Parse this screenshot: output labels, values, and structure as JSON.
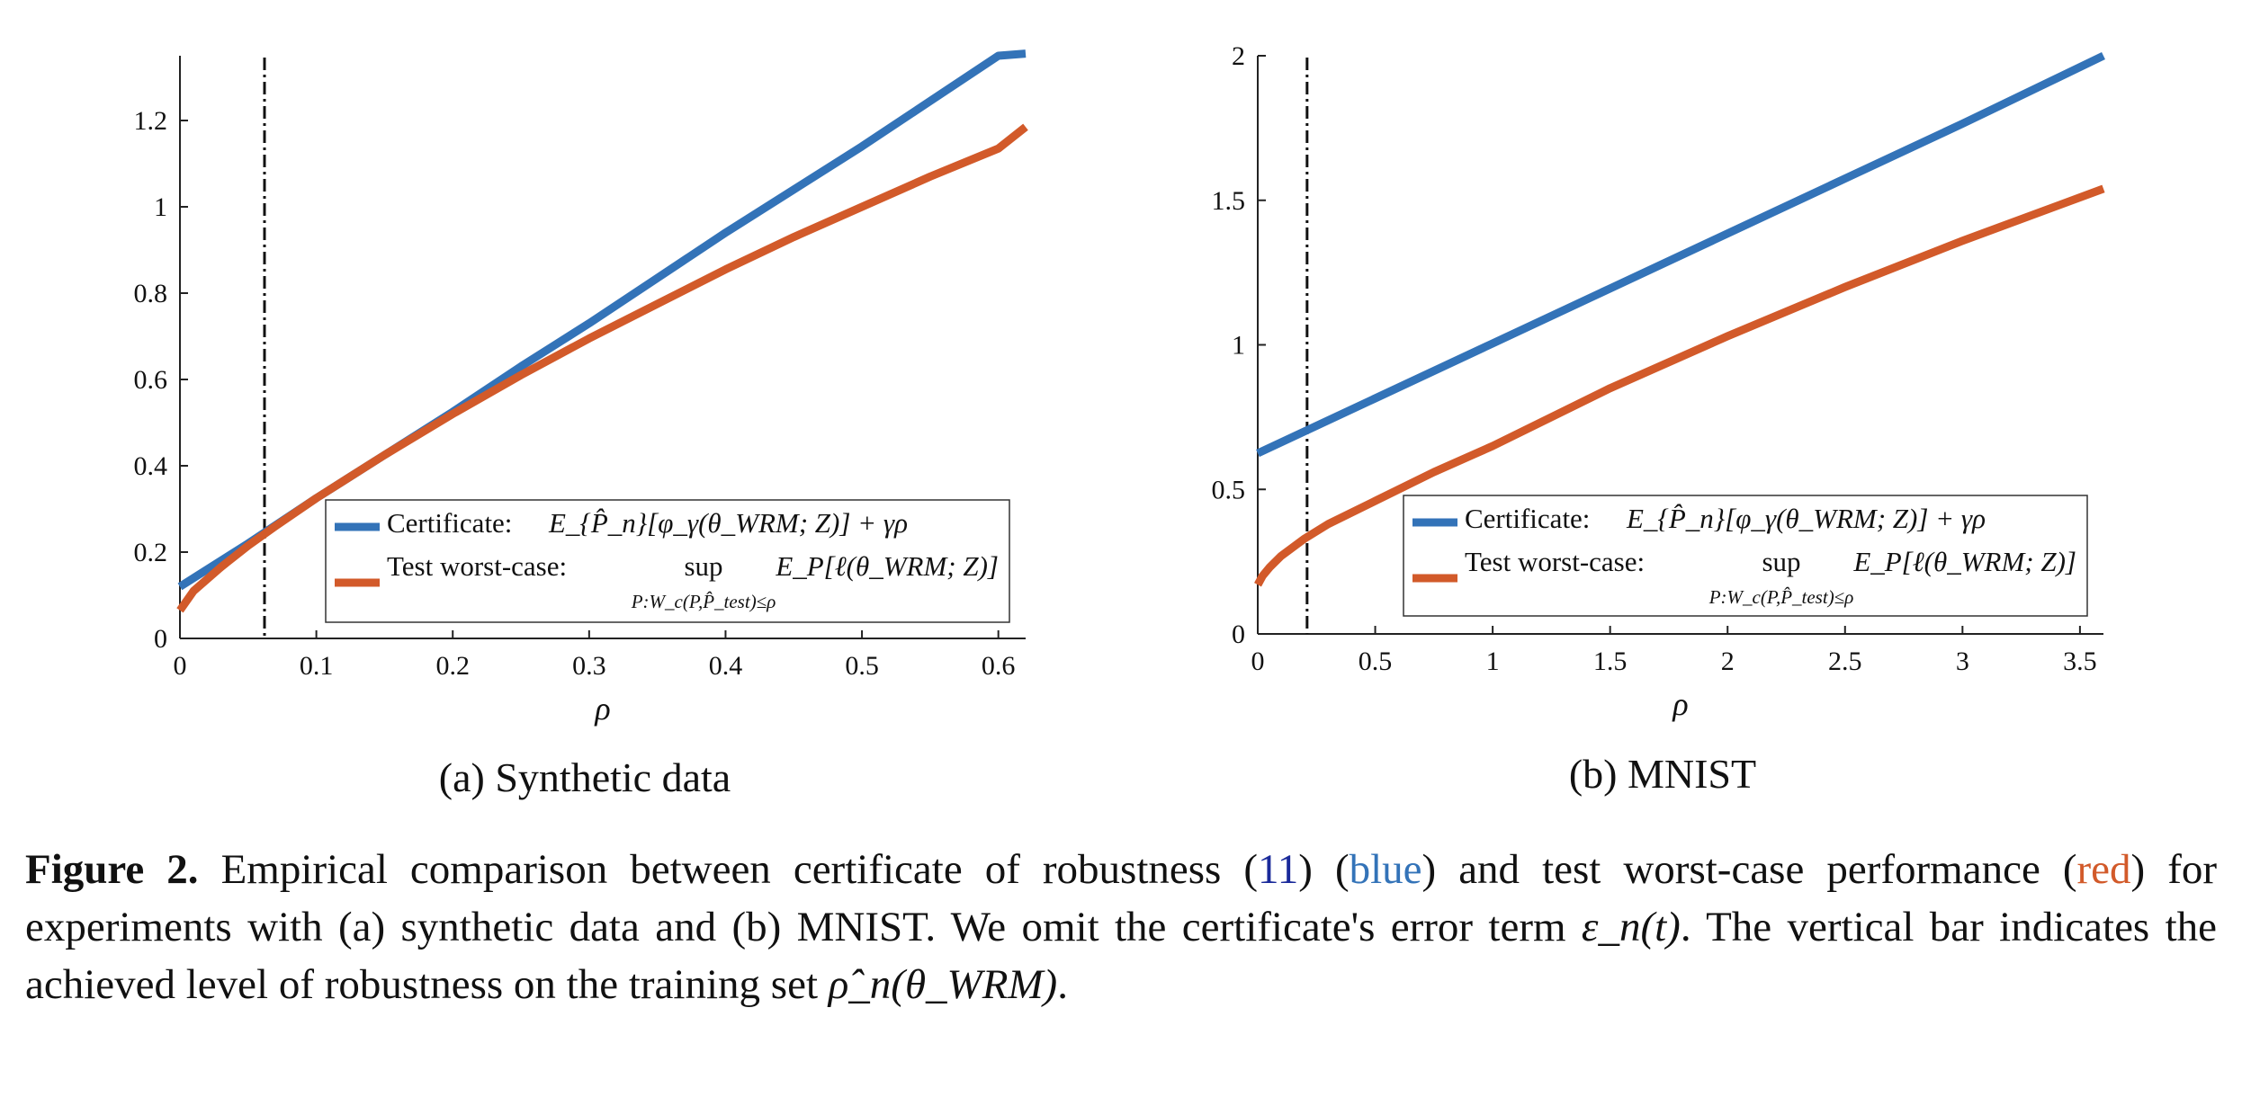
{
  "chart_data": [
    {
      "type": "line",
      "subcaption": "(a) Synthetic data",
      "xlabel": "ρ",
      "xlim": [
        0,
        0.62
      ],
      "ylim": [
        0,
        1.35
      ],
      "xticks": [
        0,
        0.1,
        0.2,
        0.3,
        0.4,
        0.5,
        0.6
      ],
      "xtick_labels": [
        "0",
        "0.1",
        "0.2",
        "0.3",
        "0.4",
        "0.5",
        "0.6"
      ],
      "yticks": [
        0,
        0.2,
        0.4,
        0.6,
        0.8,
        1,
        1.2
      ],
      "ytick_labels": [
        "0",
        "0.2",
        "0.4",
        "0.6",
        "0.8",
        "1",
        "1.2"
      ],
      "vline": 0.062,
      "legend_placement": "bottom-right",
      "series": [
        {
          "name": "Certificate:",
          "formula": "E_{P̂_n}[φ_γ(θ_WRM; Z)] + γρ",
          "color": "#3373b8",
          "x": [
            0,
            0.05,
            0.1,
            0.15,
            0.2,
            0.25,
            0.3,
            0.35,
            0.4,
            0.45,
            0.5,
            0.55,
            0.6,
            0.62
          ],
          "y": [
            0.12,
            0.22,
            0.325,
            0.425,
            0.525,
            0.63,
            0.73,
            0.835,
            0.94,
            1.04,
            1.14,
            1.245,
            1.35,
            1.355
          ]
        },
        {
          "name": "Test worst-case:",
          "formula_top": "sup",
          "formula_sub": "P:W_c(P,P̂_test)≤ρ",
          "formula_right": "E_P[ℓ(θ_WRM; Z)]",
          "color": "#d25a2a",
          "x": [
            0,
            0.01,
            0.03,
            0.05,
            0.07,
            0.1,
            0.15,
            0.2,
            0.25,
            0.3,
            0.35,
            0.4,
            0.45,
            0.5,
            0.55,
            0.6,
            0.62
          ],
          "y": [
            0.065,
            0.11,
            0.165,
            0.215,
            0.26,
            0.325,
            0.425,
            0.52,
            0.61,
            0.695,
            0.775,
            0.855,
            0.93,
            1.0,
            1.07,
            1.135,
            1.185
          ]
        }
      ]
    },
    {
      "type": "line",
      "subcaption": "(b) MNIST",
      "xlabel": "ρ",
      "xlim": [
        0,
        3.6
      ],
      "ylim": [
        0,
        2
      ],
      "xticks": [
        0,
        0.5,
        1,
        1.5,
        2,
        2.5,
        3,
        3.5
      ],
      "xtick_labels": [
        "0",
        "0.5",
        "1",
        "1.5",
        "2",
        "2.5",
        "3",
        "3.5"
      ],
      "yticks": [
        0,
        0.5,
        1,
        1.5,
        2
      ],
      "ytick_labels": [
        "0",
        "0.5",
        "1",
        "1.5",
        "2"
      ],
      "vline": 0.21,
      "legend_placement": "bottom-right",
      "series": [
        {
          "name": "Certificate:",
          "formula": "E_{P̂_n}[φ_γ(θ_WRM; Z)] + γρ",
          "color": "#3373b8",
          "x": [
            0,
            0.5,
            1,
            1.5,
            2,
            2.5,
            3,
            3.6
          ],
          "y": [
            0.625,
            0.815,
            1.005,
            1.195,
            1.385,
            1.575,
            1.765,
            2.0
          ]
        },
        {
          "name": "Test worst-case:",
          "formula_top": "sup",
          "formula_sub": "P:W_c(P,P̂_test)≤ρ",
          "formula_right": "E_P[ℓ(θ_WRM; Z)]",
          "color": "#d25a2a",
          "x": [
            0,
            0.02,
            0.05,
            0.1,
            0.2,
            0.3,
            0.5,
            0.75,
            1,
            1.5,
            2,
            2.5,
            3,
            3.6
          ],
          "y": [
            0.17,
            0.2,
            0.23,
            0.27,
            0.33,
            0.38,
            0.46,
            0.56,
            0.65,
            0.85,
            1.03,
            1.2,
            1.36,
            1.54
          ]
        }
      ]
    }
  ],
  "caption": {
    "label": "Figure 2.",
    "p1": " Empirical comparison between certificate of robustness (",
    "ref": "11",
    "p2": ") (",
    "blue_word": "blue",
    "p3": ") and test worst-case performance (",
    "red_word": "red",
    "p4": ") for experiments with (a) synthetic data and (b) MNIST. We omit the certificate's error term ",
    "eps": "ε_n(t)",
    "p5": ".  The vertical bar indicates the achieved level of robustness on the training set ",
    "rho": "ρ̂_n(θ_WRM)",
    "p6": "."
  }
}
